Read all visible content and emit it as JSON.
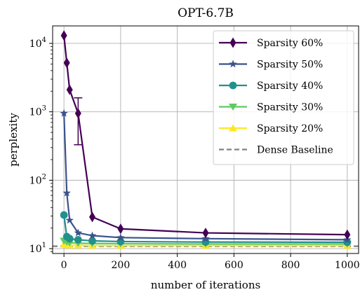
{
  "chart_data": {
    "type": "line",
    "title": "OPT-6.7B",
    "xlabel": "number of iterations",
    "ylabel": "perplexity",
    "xlim": [
      -40,
      1040
    ],
    "ylim": [
      8.5,
      18000
    ],
    "yscale": "log",
    "grid": true,
    "legend_position": "top-right",
    "x_ticks": [
      0,
      200,
      400,
      600,
      800,
      1000
    ],
    "y_ticks": [
      10,
      100,
      1000,
      10000
    ],
    "series": [
      {
        "name": "Sparsity 60%",
        "color": "#440154",
        "marker": "diamond",
        "x": [
          0,
          10,
          20,
          50,
          100,
          200,
          500,
          1000
        ],
        "y": [
          13000,
          5200,
          2100,
          950,
          29,
          19.5,
          17,
          16
        ],
        "errors": [
          {
            "x": 50,
            "low": 330,
            "high": 1600
          }
        ]
      },
      {
        "name": "Sparsity 50%",
        "color": "#3b528b",
        "marker": "star",
        "x": [
          0,
          10,
          20,
          50,
          100,
          200,
          500,
          1000
        ],
        "y": [
          950,
          65,
          26,
          17,
          15.5,
          14.5,
          14,
          13.5
        ]
      },
      {
        "name": "Sparsity 40%",
        "color": "#21918c",
        "marker": "circle",
        "x": [
          0,
          10,
          20,
          50,
          100,
          200,
          500,
          1000
        ],
        "y": [
          31,
          15,
          14,
          13.5,
          13,
          12.7,
          12.5,
          12.4
        ]
      },
      {
        "name": "Sparsity 30%",
        "color": "#5ec962",
        "marker": "triangle-down",
        "x": [
          0,
          10,
          20,
          50,
          100,
          200,
          500,
          1000
        ],
        "y": [
          13,
          12.5,
          12.2,
          12,
          11.9,
          11.8,
          11.7,
          11.7
        ]
      },
      {
        "name": "Sparsity 20%",
        "color": "#fde725",
        "marker": "triangle-up",
        "x": [
          0,
          10,
          20,
          50,
          100,
          200,
          500,
          1000
        ],
        "y": [
          11.5,
          11.3,
          11.2,
          11.2,
          11.1,
          11.1,
          11.1,
          11.1
        ]
      }
    ],
    "baseline": {
      "name": "Dense Baseline",
      "color": "#808080",
      "style": "dashed",
      "y": 10.86
    }
  }
}
